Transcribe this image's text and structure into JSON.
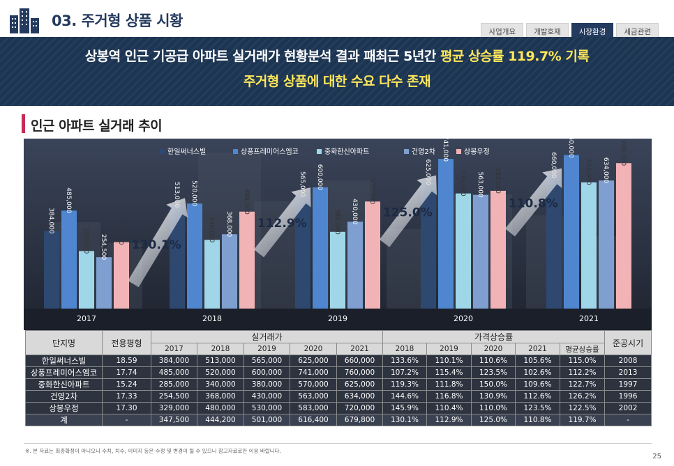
{
  "header": {
    "section_title": "03. 주거형 상품 시황",
    "tabs": [
      {
        "label": "사업개요",
        "active": false
      },
      {
        "label": "개발호재",
        "active": false
      },
      {
        "label": "시장환경",
        "active": true
      },
      {
        "label": "세금관련",
        "active": false
      }
    ]
  },
  "banner": {
    "line1_prefix": "상봉역 인근 기공급 아파트 실거래가 현황분석 결과 ",
    "line1_mid": "패최근 5년간 ",
    "line1_highlight": "평균 상승률 119.7% 기록",
    "line2": "주거형 상품에 대한 수요 다수 존재"
  },
  "subsection": {
    "title": "인근 아파트 실거래 추이"
  },
  "colors": {
    "navy": "#1c3553",
    "accent_red": "#c62b57",
    "highlight_yellow": "#ffe75a",
    "series": [
      "#2e4870",
      "#4f86cf",
      "#9fd7e8",
      "#7f9fd0",
      "#f2b3b6"
    ]
  },
  "chart_data": {
    "type": "bar",
    "categories": [
      "2017",
      "2018",
      "2019",
      "2020",
      "2021"
    ],
    "series": [
      {
        "name": "한일써너스빌",
        "values": [
          384000,
          513000,
          565000,
          625000,
          660000
        ]
      },
      {
        "name": "상풍프레미어스엠코",
        "values": [
          485000,
          520000,
          600000,
          741000,
          760000
        ]
      },
      {
        "name": "중화한신아파트",
        "values": [
          285000,
          340000,
          380000,
          570000,
          625000
        ]
      },
      {
        "name": "건영2차",
        "values": [
          254500,
          368000,
          430000,
          563000,
          634000
        ]
      },
      {
        "name": "상봉우정",
        "values": [
          329000,
          480000,
          530000,
          583000,
          720000
        ]
      }
    ],
    "value_labels": [
      [
        "384,000",
        "513,000",
        "565,000",
        "625,000",
        "660,000"
      ],
      [
        "485,000",
        "520,000",
        "600,000",
        "741,000",
        "760,000"
      ],
      [
        "285,000",
        "340,000",
        "380,000",
        "570,000",
        "625,000"
      ],
      [
        "254,500",
        "368,000",
        "430,000",
        "563,000",
        "634,000"
      ],
      [
        "329,000",
        "480,000",
        "530,000",
        "583,000",
        "720,000"
      ]
    ],
    "growth_annotations": [
      "130.1%",
      "112.9%",
      "125.0%",
      "110.8%"
    ],
    "ylim": [
      0,
      800000
    ],
    "legend_position": "top-center",
    "grid": false
  },
  "table": {
    "col_complex": "단지명",
    "col_area": "전용평형",
    "group_price": "실거래가",
    "group_rate": "가격상승률",
    "col_built": "준공시기",
    "price_years": [
      "2017",
      "2018",
      "2019",
      "2020",
      "2021"
    ],
    "rate_years": [
      "2018",
      "2019",
      "2020",
      "2021",
      "평균상승률"
    ],
    "rows": [
      {
        "name": "한일써너스빌",
        "area": "18.59",
        "prices": [
          "384,000",
          "513,000",
          "565,000",
          "625,000",
          "660,000"
        ],
        "rates": [
          "133.6%",
          "110.1%",
          "110.6%",
          "105.6%",
          "115.0%"
        ],
        "built": "2008"
      },
      {
        "name": "상풍프레미어스엠코",
        "area": "17.74",
        "prices": [
          "485,000",
          "520,000",
          "600,000",
          "741,000",
          "760,000"
        ],
        "rates": [
          "107.2%",
          "115.4%",
          "123.5%",
          "102.6%",
          "112.2%"
        ],
        "built": "2013"
      },
      {
        "name": "중화한신아파트",
        "area": "15.24",
        "prices": [
          "285,000",
          "340,000",
          "380,000",
          "570,000",
          "625,000"
        ],
        "rates": [
          "119.3%",
          "111.8%",
          "150.0%",
          "109.6%",
          "122.7%"
        ],
        "built": "1997"
      },
      {
        "name": "건영2차",
        "area": "17.33",
        "prices": [
          "254,500",
          "368,000",
          "430,000",
          "563,000",
          "634,000"
        ],
        "rates": [
          "144.6%",
          "116.8%",
          "130.9%",
          "112.6%",
          "126.2%"
        ],
        "built": "1996"
      },
      {
        "name": "상봉우정",
        "area": "17.30",
        "prices": [
          "329,000",
          "480,000",
          "530,000",
          "583,000",
          "720,000"
        ],
        "rates": [
          "145.9%",
          "110.4%",
          "110.0%",
          "123.5%",
          "122.5%"
        ],
        "built": "2002"
      },
      {
        "name": "계",
        "area": "-",
        "prices": [
          "347,500",
          "444,200",
          "501,000",
          "616,400",
          "679,800"
        ],
        "rates": [
          "130.1%",
          "112.9%",
          "125.0%",
          "110.8%",
          "119.7%"
        ],
        "built": "-"
      }
    ]
  },
  "footer": {
    "note": "※. 본 자료는 최종확정이 아니오니 수치, 치수, 이미지 등은 수정 및 변경이 될 수 있으니 참고자료로만 이용 바랍니다.",
    "page_number": "25"
  }
}
